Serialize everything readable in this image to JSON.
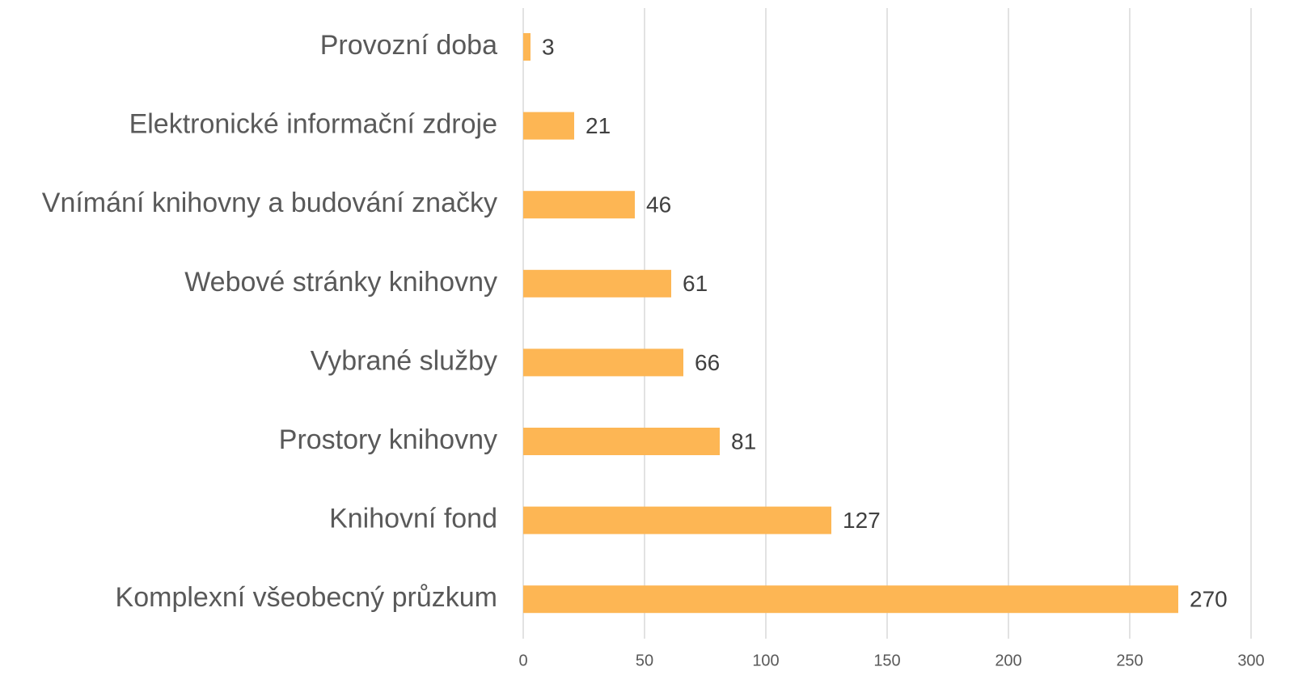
{
  "chart_data": {
    "type": "hbar",
    "categories": [
      "Provozní doba",
      "Elektronické informační zdroje",
      "Vnímání knihovny a budování značky",
      "Webové stránky knihovny",
      "Vybrané služby",
      "Prostory knihovny",
      "Knihovní fond",
      "Komplexní všeobecný průzkum"
    ],
    "values": [
      3,
      21,
      46,
      61,
      66,
      81,
      127,
      270
    ],
    "color": "#fdb654",
    "xlim": [
      0,
      300
    ],
    "xticks": [
      0,
      50,
      100,
      150,
      200,
      250,
      300
    ],
    "grid": true
  }
}
